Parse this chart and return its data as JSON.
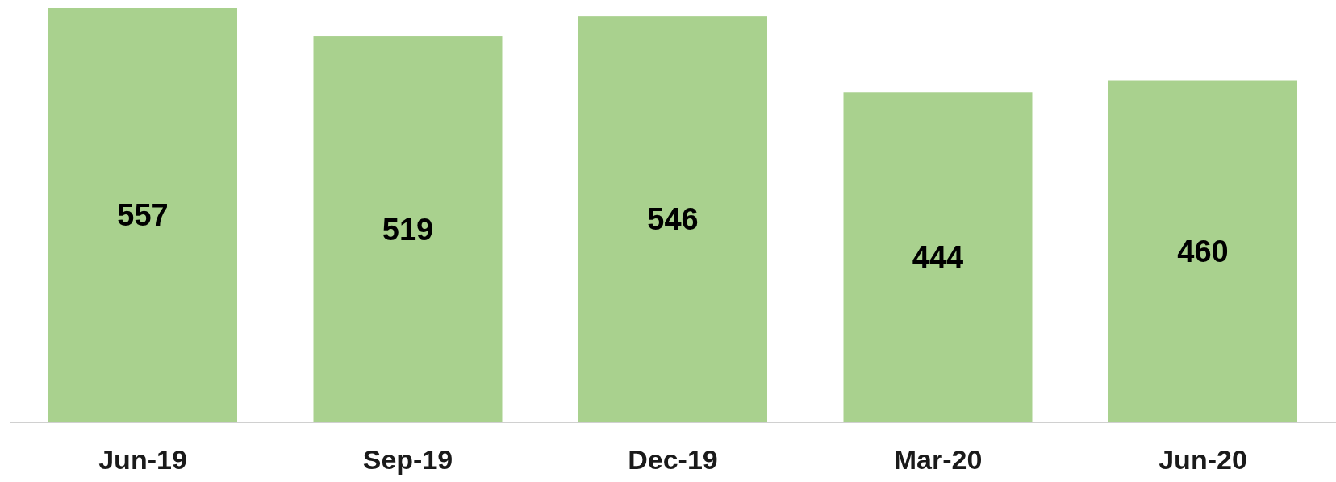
{
  "chart_data": {
    "type": "bar",
    "categories": [
      "Jun-19",
      "Sep-19",
      "Dec-19",
      "Mar-20",
      "Jun-20"
    ],
    "values": [
      557,
      519,
      546,
      444,
      460
    ],
    "color": "#a9d18e",
    "data_labels": true,
    "tick_labels": "x"
  }
}
